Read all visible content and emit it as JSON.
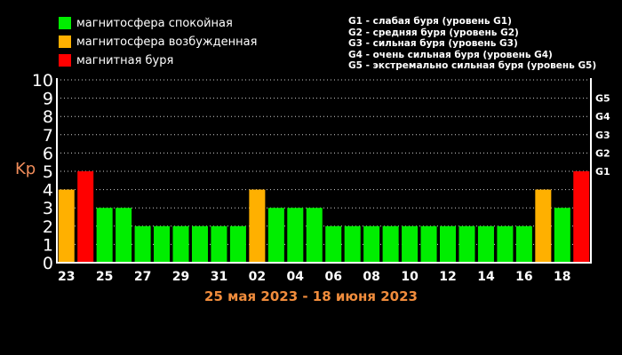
{
  "legend": {
    "items": [
      {
        "label": "магнитосфера спокойная",
        "color": "#00ee00"
      },
      {
        "label": "магнитосфера возбужденная",
        "color": "#ffb000"
      },
      {
        "label": "магнитная буря",
        "color": "#ff0000"
      }
    ],
    "storm_levels": [
      "G1 - слабая буря (уровень G1)",
      "G2 - средняя буря (уровень G2)",
      "G3 - сильная буря (уровень G3)",
      "G4 - очень сильная буря (уровень G4)",
      "G5 - экстремально сильная буря (уровень G5)"
    ]
  },
  "chart_data": {
    "type": "bar",
    "ylabel": "Kp",
    "subtitle": "25 мая 2023 - 18 июня 2023",
    "ylim": [
      0,
      10
    ],
    "y_ticks": [
      "0",
      "1",
      "2",
      "3",
      "4",
      "5",
      "6",
      "7",
      "8",
      "9",
      "10"
    ],
    "right_ticks": [
      {
        "label": "G1",
        "value": 5
      },
      {
        "label": "G2",
        "value": 6
      },
      {
        "label": "G3",
        "value": 7
      },
      {
        "label": "G4",
        "value": 8
      },
      {
        "label": "G5",
        "value": 9
      }
    ],
    "x_tick_labels": [
      "23",
      "25",
      "27",
      "29",
      "31",
      "02",
      "04",
      "06",
      "08",
      "10",
      "12",
      "14",
      "16",
      "18"
    ],
    "grid": true,
    "colors": {
      "calm": "#00ee00",
      "excited": "#ffb000",
      "storm": "#ff0000"
    },
    "bars": [
      {
        "value": 4,
        "level": "excited"
      },
      {
        "value": 5,
        "level": "storm"
      },
      {
        "value": 3,
        "level": "calm"
      },
      {
        "value": 3,
        "level": "calm"
      },
      {
        "value": 2,
        "level": "calm"
      },
      {
        "value": 2,
        "level": "calm"
      },
      {
        "value": 2,
        "level": "calm"
      },
      {
        "value": 2,
        "level": "calm"
      },
      {
        "value": 2,
        "level": "calm"
      },
      {
        "value": 2,
        "level": "calm"
      },
      {
        "value": 4,
        "level": "excited"
      },
      {
        "value": 3,
        "level": "calm"
      },
      {
        "value": 3,
        "level": "calm"
      },
      {
        "value": 3,
        "level": "calm"
      },
      {
        "value": 2,
        "level": "calm"
      },
      {
        "value": 2,
        "level": "calm"
      },
      {
        "value": 2,
        "level": "calm"
      },
      {
        "value": 2,
        "level": "calm"
      },
      {
        "value": 2,
        "level": "calm"
      },
      {
        "value": 2,
        "level": "calm"
      },
      {
        "value": 2,
        "level": "calm"
      },
      {
        "value": 2,
        "level": "calm"
      },
      {
        "value": 2,
        "level": "calm"
      },
      {
        "value": 2,
        "level": "calm"
      },
      {
        "value": 2,
        "level": "calm"
      },
      {
        "value": 4,
        "level": "excited"
      },
      {
        "value": 3,
        "level": "calm"
      },
      {
        "value": 5,
        "level": "storm"
      }
    ]
  }
}
